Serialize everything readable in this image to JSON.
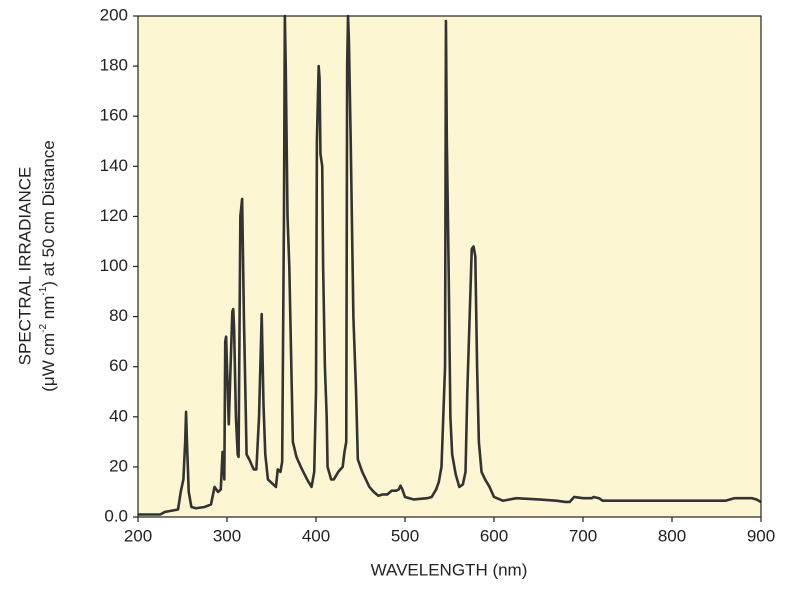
{
  "chart_data": {
    "type": "line",
    "x_label": "WAVELENGTH (nm)",
    "y_label": [
      "SPECTRAL IRRADIANCE",
      [
        "(μW cm",
        "-2",
        " nm",
        "-1",
        ") at 50 cm Distance"
      ]
    ],
    "xlim": [
      200,
      900
    ],
    "xticks": [
      200,
      300,
      400,
      500,
      600,
      700,
      800,
      900
    ],
    "ylim": [
      0,
      200
    ],
    "yticks": [
      {
        "value": 0,
        "label": "0.0"
      },
      20,
      40,
      60,
      80,
      100,
      120,
      140,
      160,
      180,
      200
    ],
    "background": "#fcf6d2",
    "series": [
      {
        "color": "#333333",
        "x": [
          200,
          225,
          230,
          245,
          248,
          251,
          253,
          254,
          255,
          257,
          260,
          265,
          275,
          282,
          286,
          290,
          293,
          295,
          296,
          297,
          298,
          299,
          300,
          302,
          304,
          306,
          307,
          308,
          310,
          312,
          313,
          315,
          317,
          319,
          322,
          325,
          330,
          333,
          336,
          339,
          341,
          343,
          346,
          355,
          357,
          360,
          362,
          364,
          365,
          366,
          368,
          370,
          372,
          374,
          378,
          383,
          390,
          395,
          398,
          400,
          401,
          403,
          404,
          405,
          407,
          408,
          410,
          412,
          413,
          417,
          420,
          425,
          430,
          432,
          434,
          435,
          436,
          437,
          439,
          442,
          445,
          447,
          452,
          460,
          465,
          470,
          475,
          480,
          485,
          490,
          493,
          495,
          497,
          500,
          510,
          525,
          530,
          535,
          538,
          541,
          545,
          546,
          547,
          549,
          551,
          553,
          557,
          561,
          565,
          568,
          570,
          575,
          577,
          579,
          581,
          583,
          586,
          590,
          595,
          600,
          610,
          625,
          650,
          670,
          680,
          685,
          690,
          700,
          710,
          712,
          718,
          722,
          780,
          860,
          870,
          890,
          895,
          900
        ],
        "values": [
          1,
          1,
          2,
          3,
          10,
          15,
          30,
          42,
          30,
          10,
          4,
          3.5,
          4,
          5,
          12,
          10,
          11,
          26,
          22,
          15,
          70,
          72,
          60,
          37,
          60,
          82,
          83,
          75,
          40,
          25,
          24,
          120,
          127,
          80,
          25,
          23,
          19,
          19,
          40,
          81,
          45,
          25,
          15,
          12,
          19,
          18,
          22,
          120,
          200,
          180,
          120,
          100,
          65,
          30,
          24,
          20,
          15,
          12,
          18,
          50,
          150,
          180,
          175,
          145,
          140,
          100,
          60,
          40,
          20,
          15,
          15,
          18,
          20,
          26,
          30,
          180,
          200,
          190,
          150,
          80,
          50,
          23,
          18,
          12,
          10,
          8.5,
          9,
          9,
          10.5,
          10.5,
          11,
          12.5,
          11,
          8,
          7,
          7.5,
          8,
          11,
          14,
          20,
          60,
          198,
          150,
          100,
          40,
          25,
          17,
          12,
          13,
          18,
          50,
          107,
          108,
          104,
          60,
          30,
          18,
          15,
          12,
          8,
          6.5,
          7.5,
          7,
          6.5,
          6,
          6,
          8,
          7.5,
          7.5,
          8,
          7.5,
          6.5,
          6.5,
          6.5,
          7.5,
          7.5,
          7,
          6
        ]
      }
    ]
  }
}
